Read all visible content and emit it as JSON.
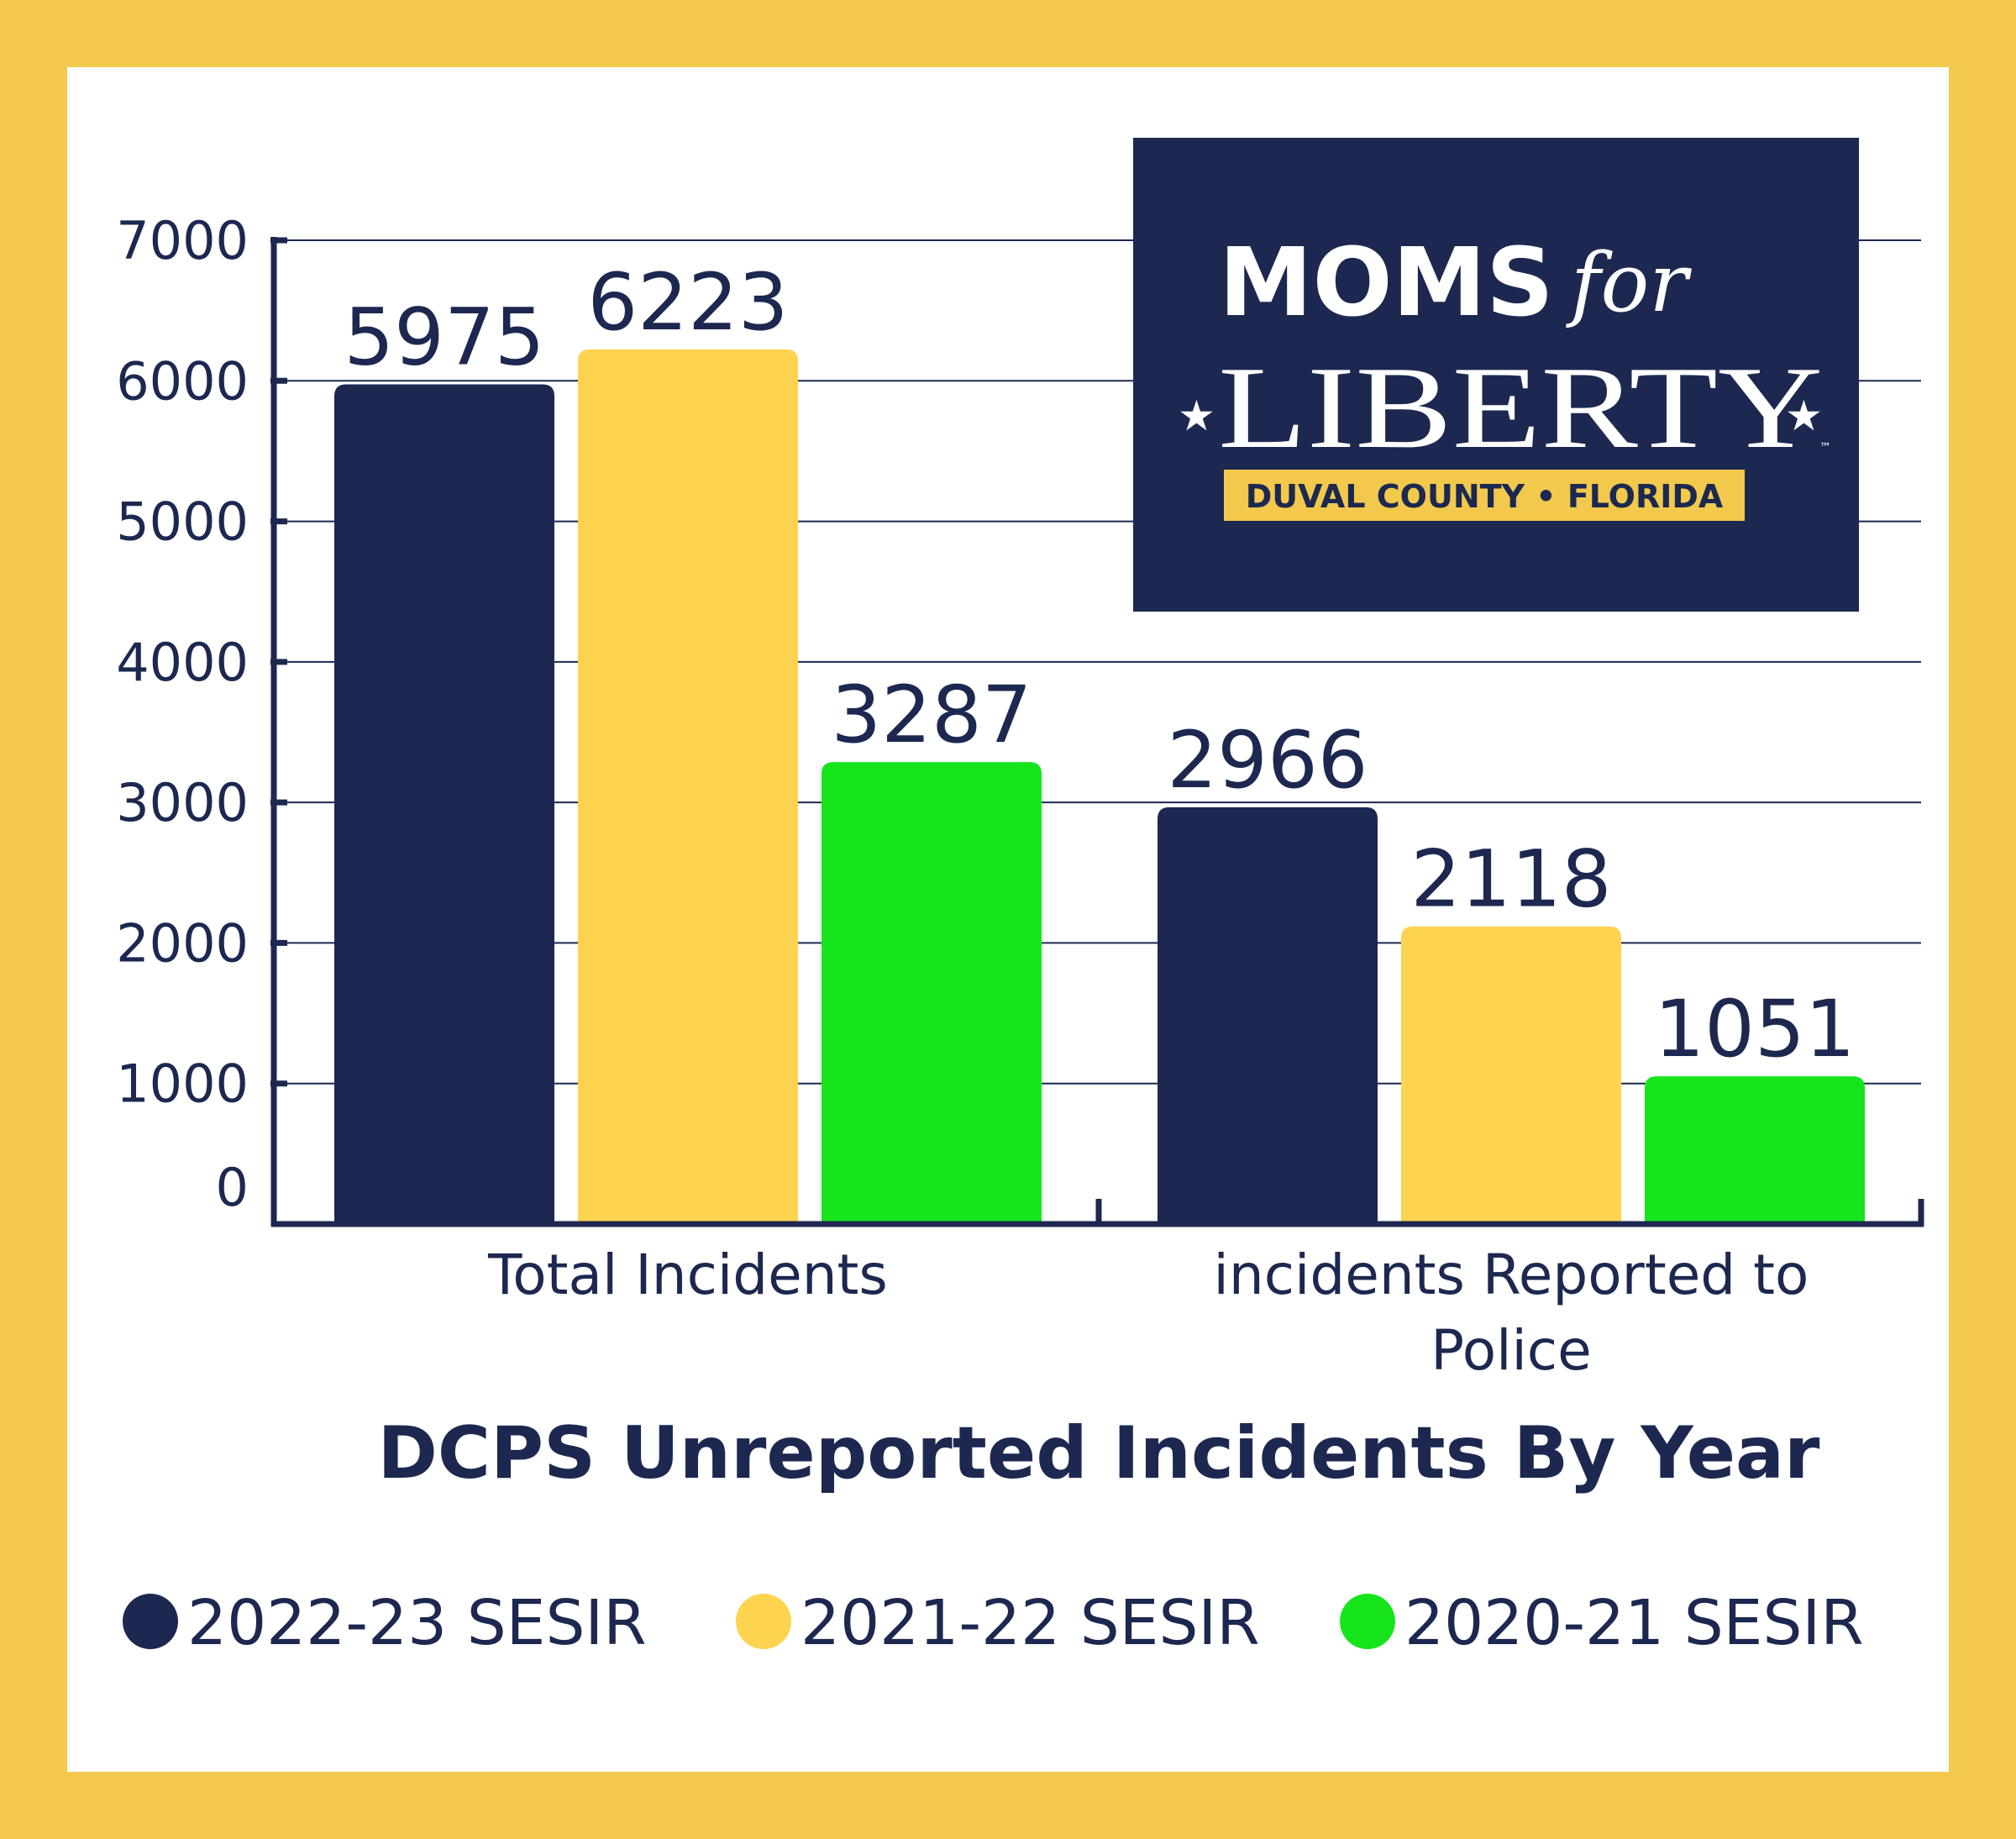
{
  "colors": {
    "frame": "#F2C94C",
    "navy": "#1C2850",
    "yellow": "#FDD34F",
    "green": "#16E51C",
    "background": "#FFFFFF"
  },
  "logo": {
    "moms": "MOMS",
    "for": "for",
    "liberty": "LIBERTY",
    "tm": "™",
    "band": "DUVAL COUNTY • FLORIDA",
    "star_icon": "star-icon"
  },
  "chart_data": {
    "type": "bar",
    "title": "DCPS Unreported Incidents By Year",
    "xlabel": "",
    "ylabel": "",
    "ylim": [
      0,
      7000
    ],
    "yticks": [
      0,
      1000,
      2000,
      3000,
      4000,
      5000,
      6000,
      7000
    ],
    "categories": [
      "Total Incidents",
      "incidents Reported to Police"
    ],
    "series": [
      {
        "name": "2022-23 SESIR",
        "color": "#1C2850",
        "values": [
          5975,
          2966
        ]
      },
      {
        "name": "2021-22 SESIR",
        "color": "#FDD34F",
        "values": [
          6223,
          2118
        ]
      },
      {
        "name": "2020-21 SESIR",
        "color": "#16E51C",
        "values": [
          3287,
          1051
        ]
      }
    ],
    "grid": true,
    "legend_position": "bottom"
  }
}
